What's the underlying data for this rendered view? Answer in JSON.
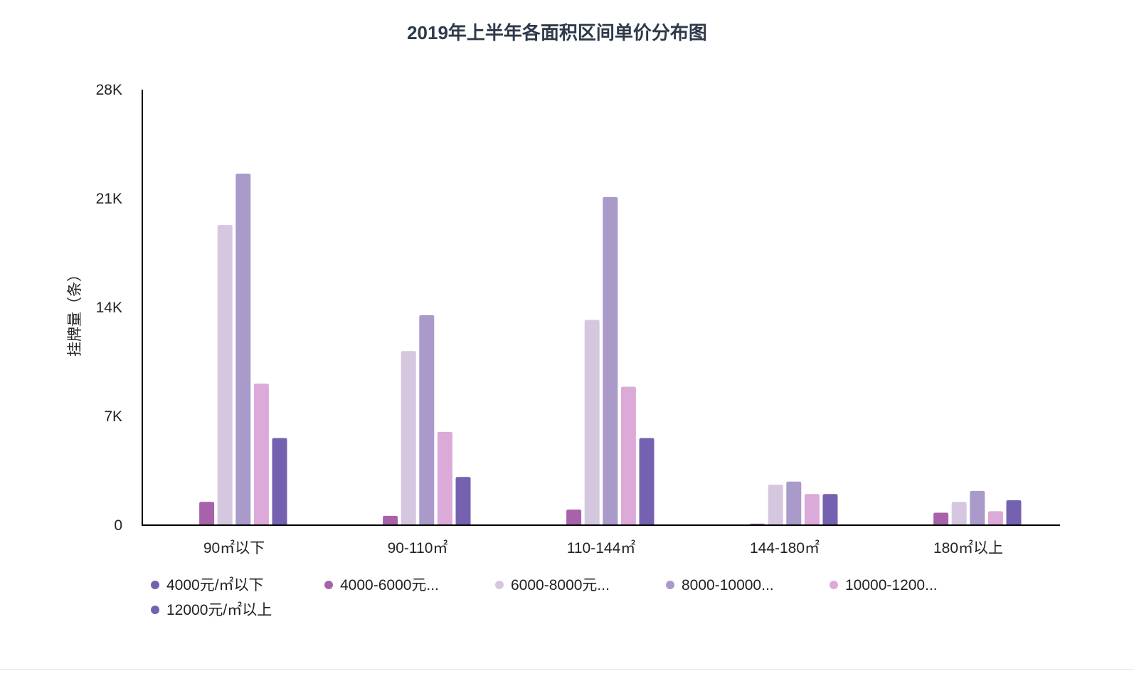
{
  "chart_data": {
    "type": "bar",
    "title": "2019年上半年各面积区间单价分布图",
    "xlabel": "",
    "ylabel": "挂牌量（条）",
    "categories": [
      "90㎡以下",
      "90-110㎡",
      "110-144㎡",
      "144-180㎡",
      "180㎡以上"
    ],
    "ylim": [
      0,
      28000
    ],
    "yticks": [
      0,
      7000,
      14000,
      21000,
      28000
    ],
    "ytick_labels": [
      "0",
      "7K",
      "14K",
      "21K",
      "28K"
    ],
    "grid": false,
    "legend_position": "bottom",
    "series": [
      {
        "name": "4000元/㎡以下",
        "legend_label": "4000元/㎡以下",
        "color": "#7462b0",
        "values": [
          0,
          0,
          0,
          0,
          0
        ]
      },
      {
        "name": "4000-6000元...",
        "legend_label": "4000-6000元...",
        "color": "#a762aa",
        "values": [
          1500,
          600,
          1000,
          100,
          800
        ]
      },
      {
        "name": "6000-8000元...",
        "legend_label": "6000-8000元...",
        "color": "#d6c7e0",
        "values": [
          19300,
          11200,
          13200,
          2600,
          1500
        ]
      },
      {
        "name": "8000-10000...",
        "legend_label": "8000-10000...",
        "color": "#a99aca",
        "values": [
          22600,
          13500,
          21100,
          2800,
          2200
        ]
      },
      {
        "name": "10000-1200...",
        "legend_label": "10000-1200...",
        "color": "#dbaad8",
        "values": [
          9100,
          6000,
          8900,
          2000,
          900
        ]
      },
      {
        "name": "12000元/㎡以上",
        "legend_label": "12000元/㎡以上",
        "color": "#7462b0",
        "values": [
          5600,
          3100,
          5600,
          2000,
          1600
        ]
      }
    ]
  }
}
